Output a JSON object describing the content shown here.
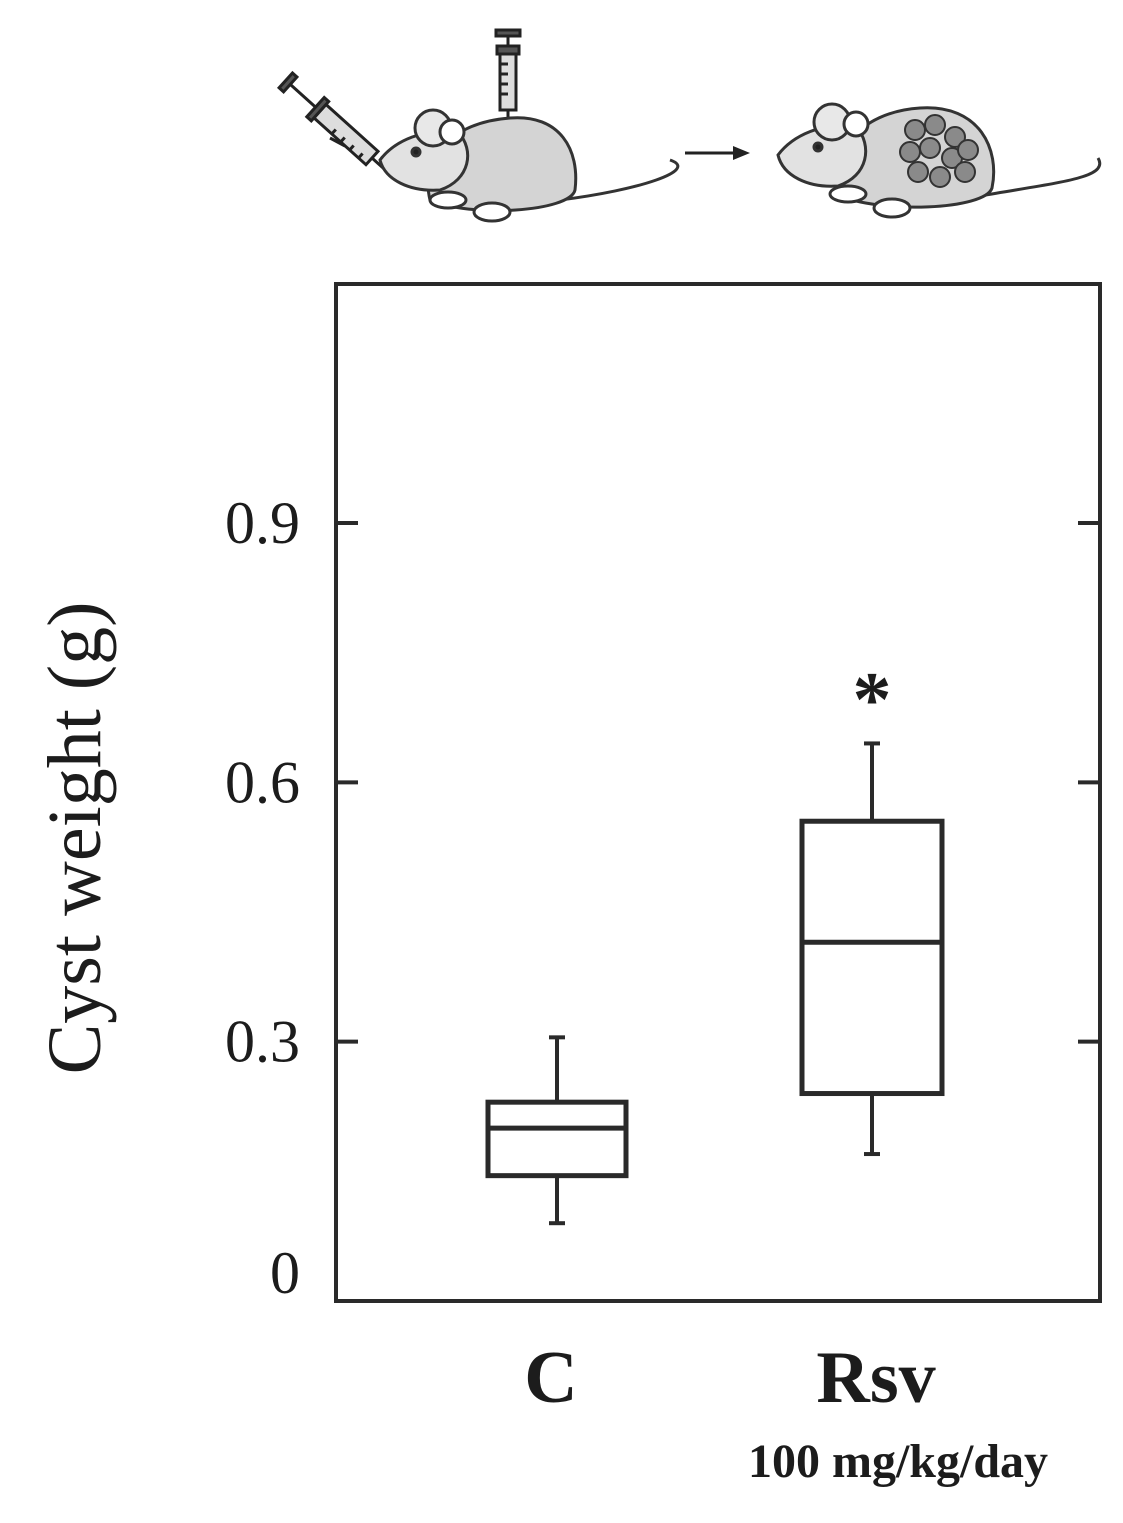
{
  "chart_data": {
    "type": "box",
    "ylabel": "Cyst weight (g)",
    "ylim": [
      0,
      1.2
    ],
    "yticks": [
      {
        "value": 0.9,
        "label": "0.9"
      },
      {
        "value": 0.6,
        "label": "0.6"
      },
      {
        "value": 0.3,
        "label": "0.3"
      },
      {
        "value": 0,
        "label": "0"
      }
    ],
    "categories": [
      "C",
      "Rsv"
    ],
    "category_sublabels": [
      "",
      "100 mg/kg/day"
    ],
    "boxes": [
      {
        "category": "C",
        "whisker_low": 0.09,
        "q1": 0.145,
        "median": 0.2,
        "q3": 0.23,
        "whisker_high": 0.305,
        "annotation": ""
      },
      {
        "category": "Rsv",
        "whisker_low": 0.17,
        "q1": 0.24,
        "median": 0.415,
        "q3": 0.555,
        "whisker_high": 0.645,
        "annotation": "*"
      }
    ],
    "illustration": "mouse-injection-to-cyst-schematic"
  }
}
